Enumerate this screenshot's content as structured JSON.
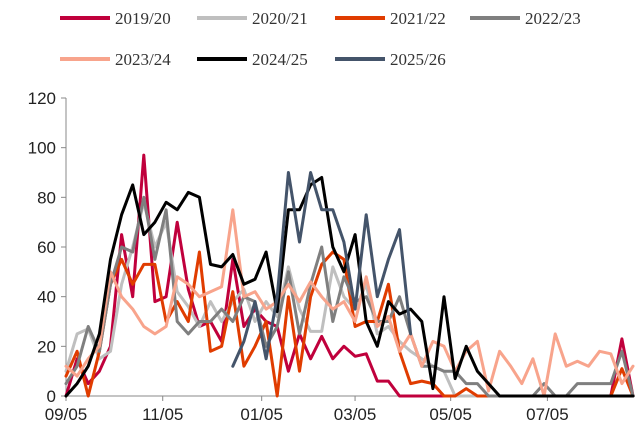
{
  "chart_data": {
    "type": "line",
    "title": "",
    "xlabel": "",
    "ylabel": "",
    "ylim": [
      0,
      120
    ],
    "yticks": [
      0,
      20,
      40,
      60,
      80,
      100,
      120
    ],
    "xlim": [
      0,
      51
    ],
    "x_tick_labels": [
      {
        "label": "09/05",
        "x": 0
      },
      {
        "label": "11/05",
        "x": 8.7
      },
      {
        "label": "01/05",
        "x": 17.6
      },
      {
        "label": "03/05",
        "x": 26.0
      },
      {
        "label": "05/05",
        "x": 34.6
      },
      {
        "label": "07/05",
        "x": 43.3
      }
    ],
    "grid": false,
    "legend_position": "top",
    "series": [
      {
        "name": "2019/20",
        "color": "#C0003C",
        "values": [
          0,
          15,
          5,
          10,
          20,
          65,
          40,
          97,
          38,
          40,
          70,
          43,
          28,
          30,
          22,
          55,
          28,
          35,
          30,
          28,
          10,
          25,
          15,
          24,
          15,
          20,
          16,
          17,
          6,
          6,
          0,
          0,
          0,
          0,
          0,
          0,
          0,
          0,
          0,
          0,
          0,
          0,
          0,
          0,
          0,
          0,
          0,
          0,
          0,
          0,
          23,
          0
        ]
      },
      {
        "name": "2020/21",
        "color": "#BFBFBF",
        "values": [
          10,
          25,
          27,
          15,
          18,
          45,
          60,
          78,
          60,
          70,
          42,
          36,
          28,
          38,
          30,
          38,
          43,
          30,
          38,
          32,
          52,
          35,
          26,
          26,
          52,
          40,
          35,
          45,
          25,
          28,
          22,
          18,
          15,
          12,
          10,
          0,
          0,
          0,
          0,
          0,
          0,
          0,
          0,
          0,
          0,
          0,
          0,
          0,
          0,
          0,
          0,
          0
        ]
      },
      {
        "name": "2021/22",
        "color": "#E03C00",
        "values": [
          8,
          18,
          0,
          18,
          45,
          55,
          45,
          53,
          53,
          30,
          38,
          30,
          58,
          18,
          20,
          42,
          12,
          20,
          30,
          0,
          40,
          10,
          40,
          53,
          58,
          55,
          28,
          30,
          30,
          45,
          18,
          5,
          6,
          5,
          0,
          0,
          3,
          0,
          0,
          0,
          0,
          0,
          0,
          0,
          0,
          0,
          0,
          0,
          0,
          0,
          11,
          0
        ]
      },
      {
        "name": "2022/23",
        "color": "#7F7F7F",
        "values": [
          5,
          12,
          28,
          18,
          45,
          60,
          58,
          80,
          55,
          75,
          30,
          25,
          30,
          30,
          35,
          30,
          40,
          38,
          20,
          28,
          50,
          25,
          45,
          60,
          30,
          48,
          38,
          40,
          30,
          30,
          40,
          25,
          12,
          12,
          10,
          10,
          5,
          5,
          0,
          0,
          0,
          0,
          0,
          5,
          0,
          0,
          5,
          5,
          5,
          5,
          18,
          0
        ]
      },
      {
        "name": "2023/24",
        "color": "#F8A48C",
        "values": [
          12,
          8,
          15,
          20,
          50,
          40,
          35,
          28,
          25,
          28,
          48,
          45,
          40,
          42,
          44,
          75,
          40,
          42,
          35,
          38,
          45,
          38,
          46,
          40,
          35,
          38,
          30,
          48,
          28,
          32,
          18,
          25,
          12,
          22,
          20,
          10,
          18,
          22,
          2,
          18,
          12,
          5,
          15,
          0,
          25,
          12,
          14,
          12,
          18,
          17,
          5,
          12
        ]
      },
      {
        "name": "2024/25",
        "color": "#000000",
        "values": [
          0,
          5,
          12,
          25,
          55,
          73,
          85,
          65,
          70,
          78,
          75,
          82,
          80,
          53,
          52,
          57,
          45,
          47,
          58,
          34,
          75,
          75,
          85,
          88,
          60,
          50,
          65,
          30,
          20,
          38,
          33,
          35,
          30,
          3,
          40,
          7,
          20,
          10,
          5,
          0,
          0,
          0,
          0,
          0,
          0,
          0,
          0,
          0,
          0,
          0,
          0,
          0
        ]
      },
      {
        "name": "2025/26",
        "color": "#44546A",
        "values": [
          null,
          null,
          null,
          null,
          null,
          null,
          null,
          null,
          null,
          null,
          null,
          null,
          null,
          null,
          null,
          12,
          22,
          38,
          15,
          40,
          90,
          62,
          90,
          75,
          75,
          62,
          35,
          73,
          40,
          55,
          67,
          25,
          null,
          null,
          null,
          null,
          null,
          null,
          null,
          null,
          null,
          null,
          null,
          null,
          null,
          null,
          null,
          null,
          null,
          null,
          null,
          null
        ]
      }
    ]
  }
}
